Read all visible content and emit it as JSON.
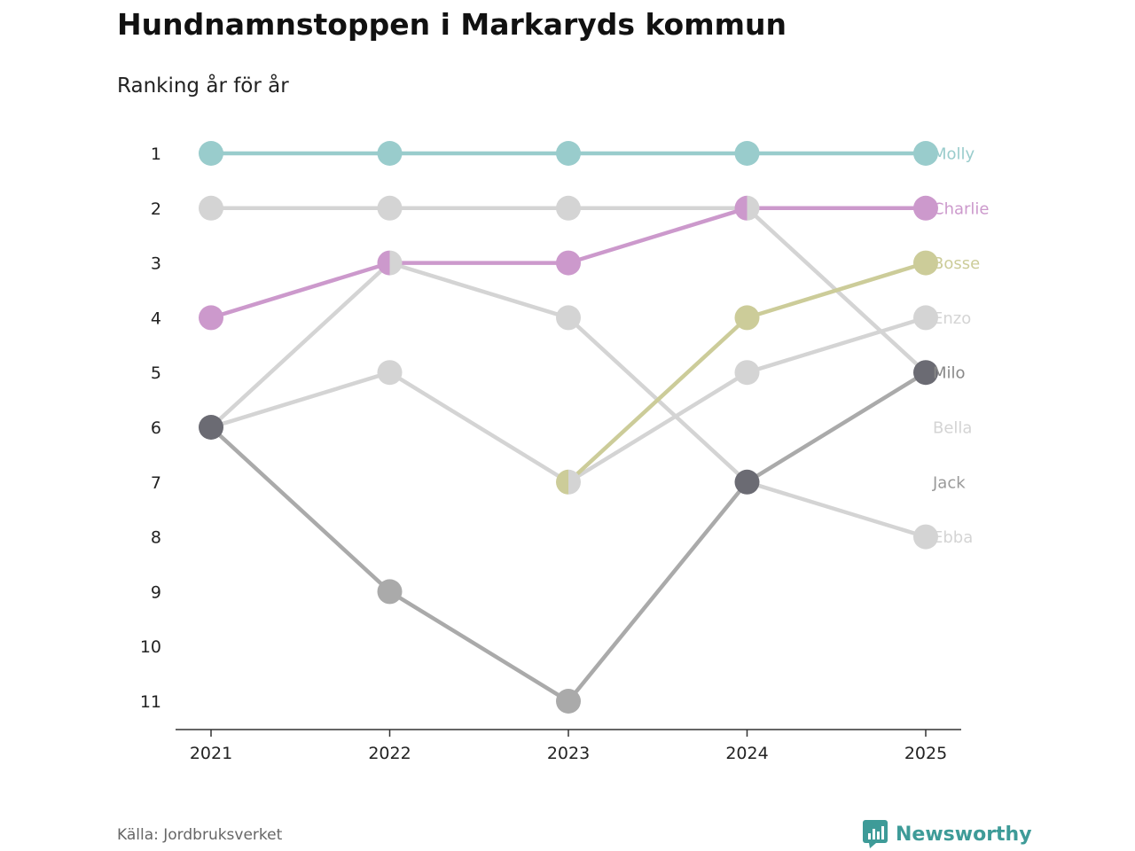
{
  "title": "Hundnamnstoppen i Markaryds kommun",
  "subtitle": "Ranking år för år",
  "source": "Källa: Jordbruksverket",
  "brand": "Newsworthy",
  "chart_data": {
    "type": "line",
    "x": [
      "2021",
      "2022",
      "2023",
      "2024",
      "2025"
    ],
    "y_ticks": [
      1,
      2,
      3,
      4,
      5,
      6,
      7,
      8,
      9,
      10,
      11
    ],
    "ylim": [
      11,
      1
    ],
    "y_inverted": true,
    "grid": false,
    "legend": "labels at right end of lines",
    "series": [
      {
        "name": "Molly",
        "color": "#99cccc",
        "label_color": "#99cccc",
        "values": [
          1,
          1,
          1,
          1,
          1
        ]
      },
      {
        "name": "Charlie",
        "color": "#cc99cc",
        "label_color": "#cc99cc",
        "values": [
          4,
          3,
          3,
          2,
          2
        ]
      },
      {
        "name": "Bosse",
        "color": "#cccc99",
        "label_color": "#cccc99",
        "values": [
          null,
          null,
          7,
          4,
          3
        ]
      },
      {
        "name": "Enzo",
        "color": "#d4d4d4",
        "label_color": "#d4d4d4",
        "values": [
          6,
          5,
          7,
          5,
          4
        ]
      },
      {
        "name": "Milo",
        "color": "#d4d4d4",
        "label_color": "#888888",
        "values": [
          2,
          2,
          2,
          2,
          5
        ]
      },
      {
        "name": "Bella",
        "color": "#d4d4d4",
        "label_color": "#d4d4d4",
        "values": [
          6,
          3,
          4,
          7,
          8
        ]
      },
      {
        "name": "Jack",
        "color": "#aaaaaa",
        "label_color": "#999999",
        "values": [
          6,
          9,
          11,
          7,
          5
        ]
      },
      {
        "name": "Ebba",
        "color": "#d4d4d4",
        "label_color": "#d4d4d4",
        "values": [
          null,
          null,
          null,
          null,
          null
        ]
      }
    ],
    "label_ranks": [
      1,
      2,
      3,
      4,
      5,
      6,
      7,
      8
    ],
    "dark_points": [
      {
        "year": "2021",
        "rank": 6,
        "color": "#6b6b73"
      },
      {
        "year": "2024",
        "rank": 7,
        "color": "#6b6b73"
      },
      {
        "year": "2025",
        "rank": 5,
        "color": "#6b6b73"
      }
    ]
  }
}
